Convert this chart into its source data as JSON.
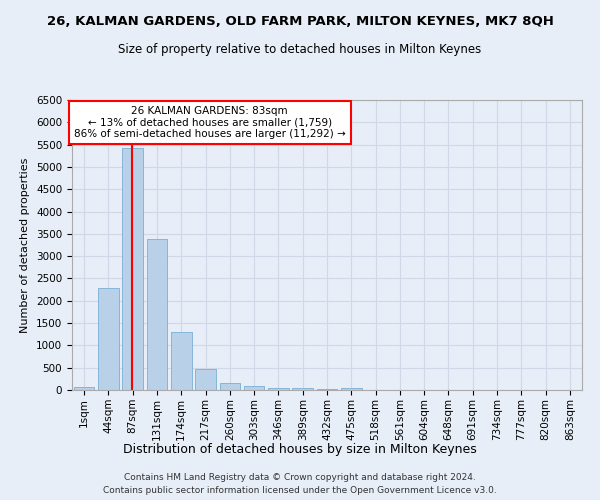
{
  "title": "26, KALMAN GARDENS, OLD FARM PARK, MILTON KEYNES, MK7 8QH",
  "subtitle": "Size of property relative to detached houses in Milton Keynes",
  "xlabel": "Distribution of detached houses by size in Milton Keynes",
  "ylabel": "Number of detached properties",
  "footnote1": "Contains HM Land Registry data © Crown copyright and database right 2024.",
  "footnote2": "Contains public sector information licensed under the Open Government Licence v3.0.",
  "categories": [
    "1sqm",
    "44sqm",
    "87sqm",
    "131sqm",
    "174sqm",
    "217sqm",
    "260sqm",
    "303sqm",
    "346sqm",
    "389sqm",
    "432sqm",
    "475sqm",
    "518sqm",
    "561sqm",
    "604sqm",
    "648sqm",
    "691sqm",
    "734sqm",
    "777sqm",
    "820sqm",
    "863sqm"
  ],
  "values": [
    75,
    2280,
    5430,
    3380,
    1290,
    480,
    160,
    80,
    55,
    40,
    30,
    55,
    10,
    5,
    3,
    2,
    1,
    1,
    1,
    1,
    1
  ],
  "bar_color": "#b8d0e8",
  "bar_edge_color": "#7aafd4",
  "grid_color": "#d0d8e8",
  "background_color": "#e8eef8",
  "annotation_text": "26 KALMAN GARDENS: 83sqm\n← 13% of detached houses are smaller (1,759)\n86% of semi-detached houses are larger (11,292) →",
  "annotation_box_color": "white",
  "annotation_box_edge_color": "red",
  "vline_x_index": 1.95,
  "vline_color": "red",
  "ylim": [
    0,
    6500
  ],
  "yticks": [
    0,
    500,
    1000,
    1500,
    2000,
    2500,
    3000,
    3500,
    4000,
    4500,
    5000,
    5500,
    6000,
    6500
  ]
}
